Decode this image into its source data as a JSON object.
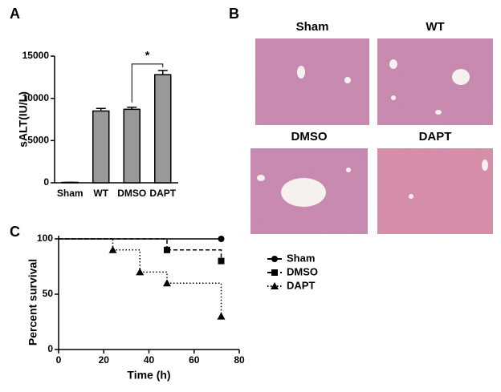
{
  "chart_data": [
    {
      "type": "bar",
      "panel": "A",
      "ylabel": "sALT(IU/L)",
      "categories": [
        "Sham",
        "WT",
        "DMSO",
        "DAPT"
      ],
      "values": [
        50,
        8500,
        8700,
        12800
      ],
      "errors": [
        0,
        300,
        250,
        500
      ],
      "color": "#999999",
      "ylim": [
        0,
        15000
      ],
      "yticks": [
        0,
        5000,
        10000,
        15000
      ],
      "annotation": "*"
    },
    {
      "type": "line",
      "panel": "C",
      "xlabel": "Time (h)",
      "ylabel": "Percent survival",
      "xlim": [
        0,
        80
      ],
      "xticks": [
        0,
        20,
        40,
        60,
        80
      ],
      "ylim": [
        0,
        100
      ],
      "yticks": [
        0,
        50,
        100
      ],
      "legend": "right",
      "series": [
        {
          "name": "Sham",
          "color": "#000000",
          "line_style": "solid",
          "marker": "circle",
          "x": [
            0,
            72
          ],
          "values": [
            100,
            100
          ]
        },
        {
          "name": "DMSO",
          "color": "#000000",
          "line_style": "dashed",
          "marker": "square",
          "x": [
            0,
            48,
            72
          ],
          "values": [
            100,
            90,
            80
          ]
        },
        {
          "name": "DAPT",
          "color": "#000000",
          "line_style": "dotted",
          "marker": "triangle",
          "x": [
            0,
            24,
            36,
            48,
            72
          ],
          "values": [
            100,
            90,
            70,
            60,
            30
          ]
        }
      ]
    }
  ],
  "images": {
    "panel": "B",
    "titles": [
      "Sham",
      "WT",
      "DMSO",
      "DAPT"
    ]
  }
}
